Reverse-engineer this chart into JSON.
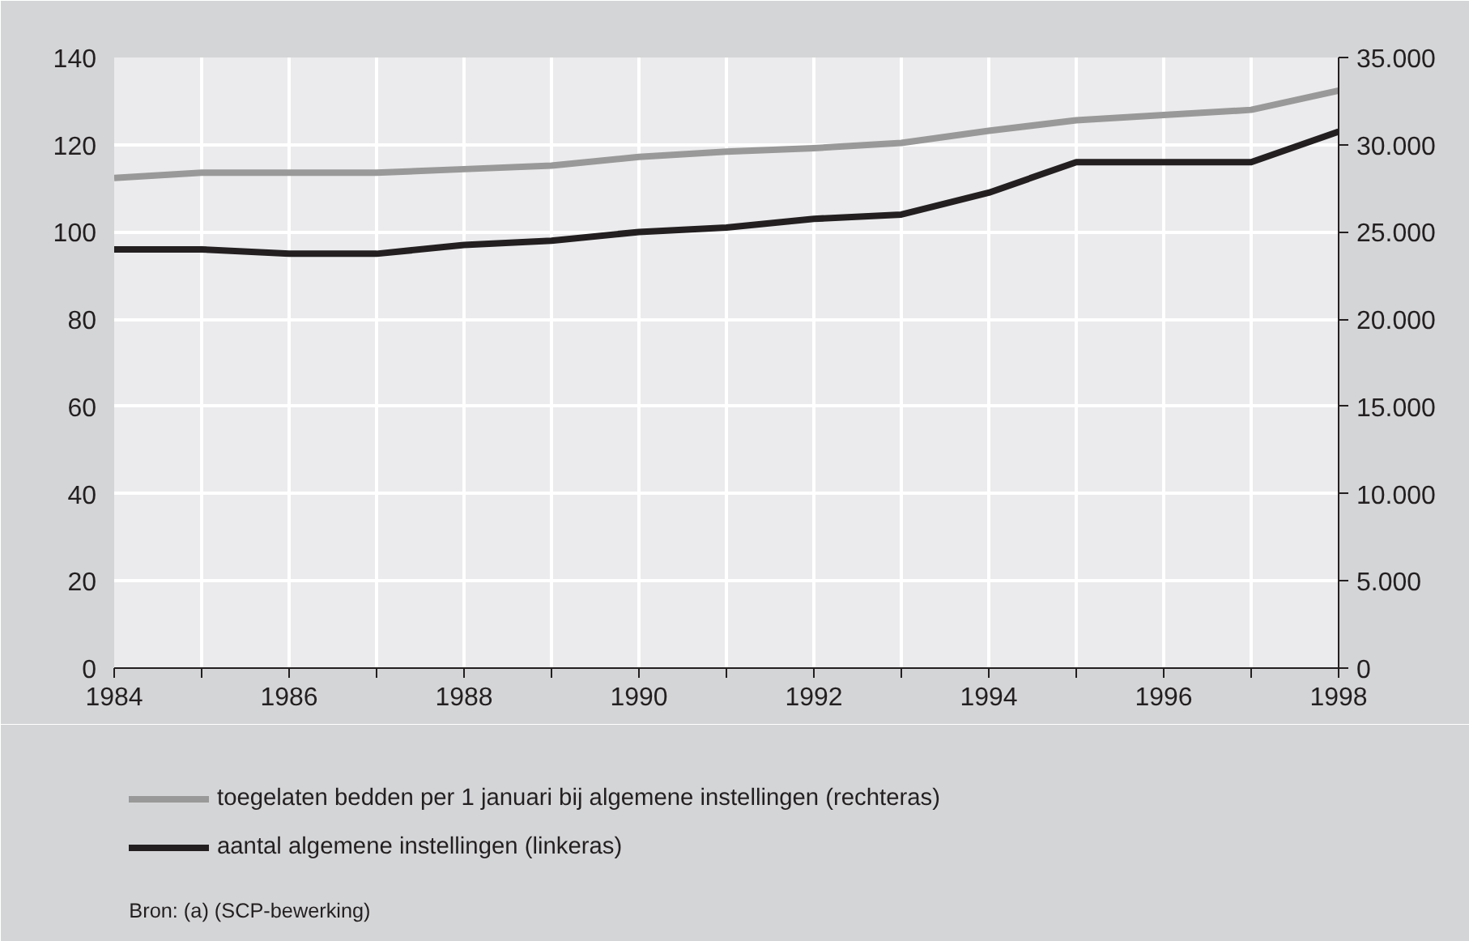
{
  "chart_data": {
    "type": "line",
    "x": [
      1984,
      1985,
      1986,
      1987,
      1988,
      1989,
      1990,
      1991,
      1992,
      1993,
      1994,
      1995,
      1996,
      1997,
      1998
    ],
    "series": [
      {
        "name": "toegelaten bedden per 1 januari bij algemene instellingen (rechteras)",
        "color": "#999999",
        "axis": "y2",
        "values": [
          28100,
          28400,
          28400,
          28400,
          28600,
          28800,
          29300,
          29600,
          29800,
          30100,
          30800,
          31400,
          31700,
          32000,
          33100
        ]
      },
      {
        "name": "aantal algemene instellingen (linkeras)",
        "color": "#231f20",
        "values": [
          96,
          96,
          95,
          95,
          97,
          98,
          100,
          101,
          103,
          104,
          109,
          116,
          116,
          116,
          123
        ]
      }
    ],
    "xlim": [
      1984,
      1998
    ],
    "xticks": [
      1984,
      {
        "value": 1985,
        "label": null
      },
      1986,
      {
        "value": 1987,
        "label": null
      },
      1988,
      {
        "value": 1989,
        "label": null
      },
      1990,
      {
        "value": 1991,
        "label": null
      },
      1992,
      {
        "value": 1993,
        "label": null
      },
      1994,
      {
        "value": 1995,
        "label": null
      },
      1996,
      {
        "value": 1997,
        "label": null
      },
      1998
    ],
    "ylim": [
      0,
      140
    ],
    "yticks": [
      0,
      20,
      40,
      60,
      80,
      100,
      120,
      140
    ],
    "y2lim": [
      0,
      35000
    ],
    "y2ticks": [
      0,
      {
        "value": 5000,
        "label": "5.000"
      },
      {
        "value": 10000,
        "label": "10.000"
      },
      {
        "value": 15000,
        "label": "15.000"
      },
      {
        "value": 20000,
        "label": "20.000"
      },
      {
        "value": 25000,
        "label": "25.000"
      },
      {
        "value": 30000,
        "label": "30.000"
      },
      {
        "value": 35000,
        "label": "35.000"
      }
    ],
    "grid": true,
    "legend": "bottom",
    "line_style": "solid",
    "annotations": [
      "Bron: (a) (SCP-bewerking)"
    ]
  }
}
